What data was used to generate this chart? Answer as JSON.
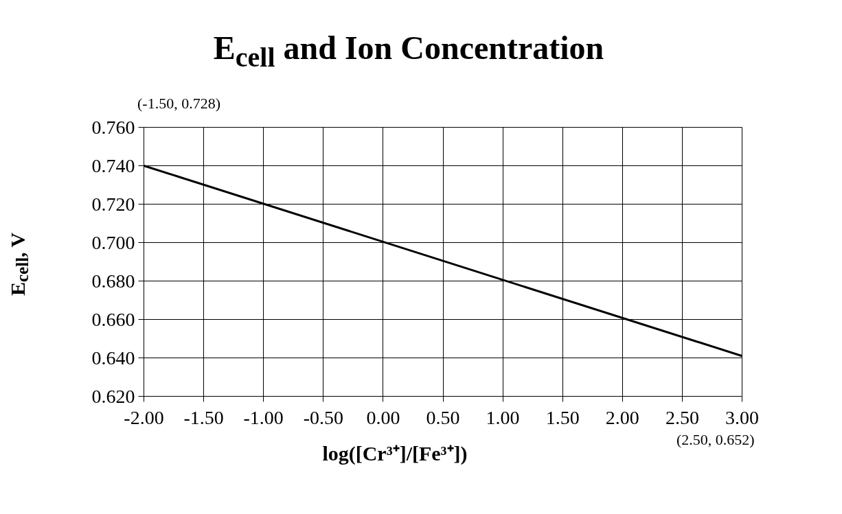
{
  "chart_data": {
    "type": "line",
    "title": "E$_{cell}$ and Ion Concentration",
    "xlabel": "log([Cr³⁺]/[Fe³⁺])",
    "ylabel": "E$_{cell}$, V",
    "x": [
      -2.0,
      3.0
    ],
    "series": [
      {
        "color": "#000000",
        "values": [
          0.74,
          0.641
        ]
      }
    ],
    "xlim": [
      -2.0,
      3.0
    ],
    "ylim": [
      0.62,
      0.76
    ],
    "xticks": [
      {
        "value": -2.0,
        "label": "-2.00"
      },
      {
        "value": -1.5,
        "label": "-1.50"
      },
      {
        "value": -1.0,
        "label": "-1.00"
      },
      {
        "value": -0.5,
        "label": "-0.50"
      },
      {
        "value": 0.0,
        "label": "0.00"
      },
      {
        "value": 0.5,
        "label": "0.50"
      },
      {
        "value": 1.0,
        "label": "1.00"
      },
      {
        "value": 1.5,
        "label": "1.50"
      },
      {
        "value": 2.0,
        "label": "2.00"
      },
      {
        "value": 2.5,
        "label": "2.50"
      },
      {
        "value": 3.0,
        "label": "3.00"
      }
    ],
    "yticks": [
      {
        "value": 0.62,
        "label": "0.620"
      },
      {
        "value": 0.64,
        "label": "0.640"
      },
      {
        "value": 0.66,
        "label": "0.660"
      },
      {
        "value": 0.68,
        "label": "0.680"
      },
      {
        "value": 0.7,
        "label": "0.700"
      },
      {
        "value": 0.72,
        "label": "0.720"
      },
      {
        "value": 0.74,
        "label": "0.740"
      },
      {
        "value": 0.76,
        "label": "0.760"
      }
    ],
    "annotations": [
      "(-1.50, 0.728)",
      "(2.50, 0.652)"
    ],
    "grid": true,
    "line_style": "solid",
    "marker": "none"
  }
}
